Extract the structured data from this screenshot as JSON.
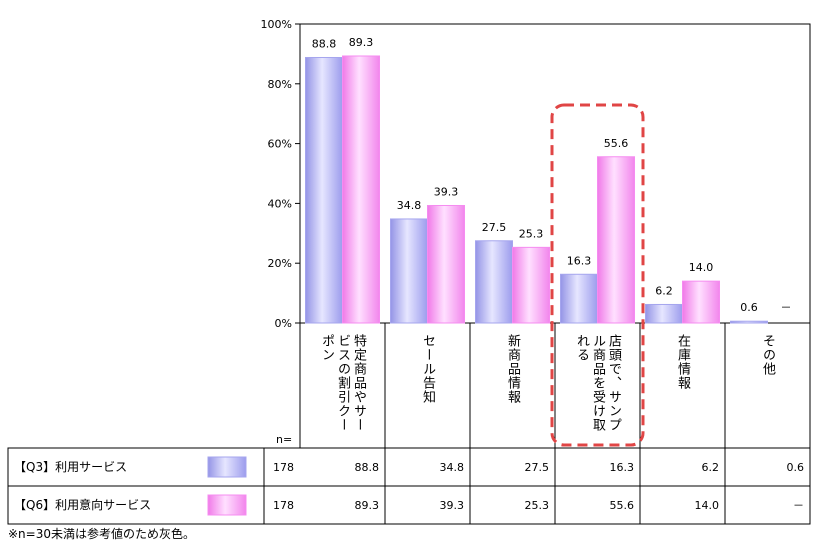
{
  "chart_data": {
    "type": "bar",
    "ylim": [
      0,
      100
    ],
    "yticks": [
      "0%",
      "20%",
      "40%",
      "60%",
      "80%",
      "100%"
    ],
    "categories": [
      [
        "ポン",
        "ビスの割引クー",
        "特定商品やサー"
      ],
      [
        "セール告知"
      ],
      [
        "新商品情報"
      ],
      [
        "れる",
        "ル商品を受け取",
        "店頭で、サンプ"
      ],
      [
        "在庫情報"
      ],
      [
        "その他"
      ]
    ],
    "series": [
      {
        "name": "【Q3】利用サービス",
        "n": "178",
        "values": [
          88.8,
          34.8,
          27.5,
          16.3,
          6.2,
          0.6
        ],
        "labels": [
          "88.8",
          "34.8",
          "27.5",
          "16.3",
          "6.2",
          "0.6"
        ],
        "table_values": [
          "88.8",
          "34.8",
          "27.5",
          "16.3",
          "6.2",
          "0.6"
        ]
      },
      {
        "name": "【Q6】利用意向サービス",
        "n": "178",
        "values": [
          89.3,
          39.3,
          25.3,
          55.6,
          14.0,
          null
        ],
        "labels": [
          "89.3",
          "39.3",
          "25.3",
          "55.6",
          "14.0",
          "－"
        ],
        "table_values": [
          "89.3",
          "39.3",
          "25.3",
          "55.6",
          "14.0",
          "－"
        ]
      }
    ],
    "n_label": "n=",
    "highlight_category": 3,
    "colors": {
      "series1": "#a5a5ee",
      "series1_light": "#ebebff",
      "series2": "#f58cf0",
      "series2_light": "#ffe4ff",
      "highlight": "#e04545"
    }
  },
  "footnote": "※n=30未満は参考値のため灰色。"
}
